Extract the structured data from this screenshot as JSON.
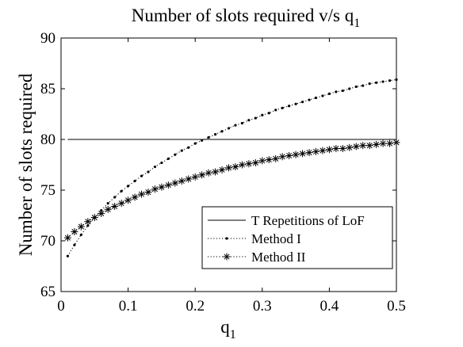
{
  "chart_data": {
    "type": "line",
    "title": "Number of slots required v/s q",
    "title_subscript": "1",
    "xlabel": "q",
    "xlabel_subscript": "1",
    "ylabel": "Number of slots required",
    "xlim": [
      0,
      0.5
    ],
    "ylim": [
      65,
      90
    ],
    "xticks": [
      "0",
      "0.1",
      "0.2",
      "0.3",
      "0.4",
      "0.5"
    ],
    "yticks": [
      "65",
      "70",
      "75",
      "80",
      "85",
      "90"
    ],
    "grid": false,
    "legend_position": "bottom-right",
    "x": [
      0.01,
      0.02,
      0.03,
      0.04,
      0.05,
      0.06,
      0.07,
      0.08,
      0.09,
      0.1,
      0.11,
      0.12,
      0.13,
      0.14,
      0.15,
      0.16,
      0.17,
      0.18,
      0.19,
      0.2,
      0.21,
      0.22,
      0.23,
      0.24,
      0.25,
      0.26,
      0.27,
      0.28,
      0.29,
      0.3,
      0.31,
      0.32,
      0.33,
      0.34,
      0.35,
      0.36,
      0.37,
      0.38,
      0.39,
      0.4,
      0.41,
      0.42,
      0.43,
      0.44,
      0.45,
      0.46,
      0.47,
      0.48,
      0.49,
      0.5
    ],
    "series": [
      {
        "name": "T Repetitions of LoF",
        "style": "solid",
        "marker": "none",
        "values": [
          80,
          80,
          80,
          80,
          80,
          80,
          80,
          80,
          80,
          80,
          80,
          80,
          80,
          80,
          80,
          80,
          80,
          80,
          80,
          80,
          80,
          80,
          80,
          80,
          80,
          80,
          80,
          80,
          80,
          80,
          80,
          80,
          80,
          80,
          80,
          80,
          80,
          80,
          80,
          80,
          80,
          80,
          80,
          80,
          80,
          80,
          80,
          80,
          80,
          80
        ]
      },
      {
        "name": "Method I",
        "style": "dotted",
        "marker": "dot",
        "values": [
          68.5,
          69.6,
          70.6,
          71.5,
          72.3,
          73.0,
          73.7,
          74.3,
          74.9,
          75.4,
          75.9,
          76.4,
          76.8,
          77.3,
          77.7,
          78.1,
          78.5,
          78.9,
          79.2,
          79.6,
          79.9,
          80.2,
          80.5,
          80.8,
          81.1,
          81.4,
          81.6,
          81.9,
          82.1,
          82.4,
          82.6,
          82.9,
          83.1,
          83.3,
          83.5,
          83.7,
          83.9,
          84.1,
          84.3,
          84.5,
          84.7,
          84.8,
          85.0,
          85.2,
          85.3,
          85.5,
          85.6,
          85.7,
          85.8,
          85.9
        ]
      },
      {
        "name": "Method II",
        "style": "dotted",
        "marker": "asterisk",
        "values": [
          70.3,
          70.9,
          71.4,
          71.9,
          72.3,
          72.7,
          73.1,
          73.4,
          73.7,
          74.0,
          74.3,
          74.6,
          74.8,
          75.1,
          75.3,
          75.5,
          75.7,
          75.9,
          76.1,
          76.3,
          76.5,
          76.7,
          76.8,
          77.0,
          77.2,
          77.3,
          77.5,
          77.6,
          77.7,
          77.9,
          78.0,
          78.1,
          78.3,
          78.4,
          78.5,
          78.6,
          78.7,
          78.8,
          78.9,
          79.0,
          79.1,
          79.1,
          79.2,
          79.3,
          79.4,
          79.4,
          79.5,
          79.6,
          79.6,
          79.7
        ]
      }
    ]
  }
}
